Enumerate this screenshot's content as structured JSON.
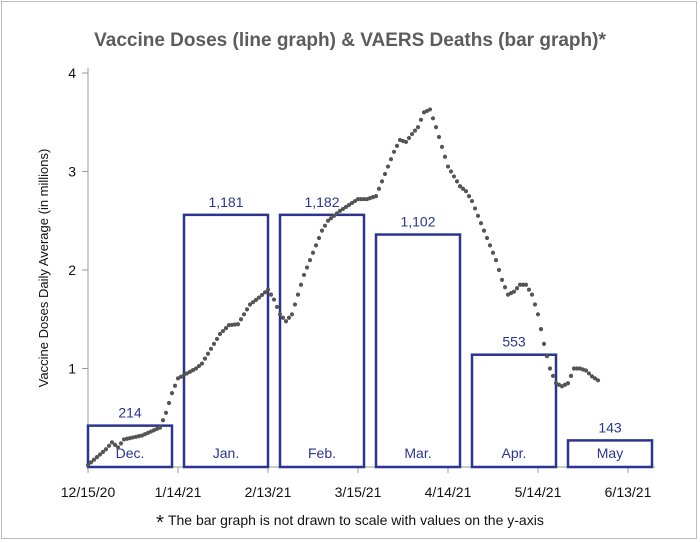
{
  "chart_data": {
    "type": "bar",
    "title": "Vaccine Doses (line graph)  & VAERS Deaths (bar graph)*",
    "ylabel": "Vaccine Doses Daily Average (in millions)",
    "ylim": [
      0,
      4
    ],
    "y_ticks": [
      "1",
      "2",
      "3",
      "4"
    ],
    "x_ticks": [
      "12/15/20",
      "1/14/21",
      "2/13/21",
      "3/15/21",
      "4/14/21",
      "5/14/21",
      "6/13/21"
    ],
    "footnote_marker": "*",
    "footnote": "The bar graph is not drawn to scale with values on the y-axis",
    "bar_color": "#2a3590",
    "line_color": "#555555",
    "bars": [
      {
        "month": "Dec.",
        "value": "214",
        "start_day": 0,
        "end_day": 28,
        "height_m": 0.42
      },
      {
        "month": "Jan.",
        "value": "1,181",
        "start_day": 32,
        "end_day": 60,
        "height_m": 2.56
      },
      {
        "month": "Feb.",
        "value": "1,182",
        "start_day": 64,
        "end_day": 92,
        "height_m": 2.56
      },
      {
        "month": "Mar.",
        "value": "1,102",
        "start_day": 96,
        "end_day": 124,
        "height_m": 2.36
      },
      {
        "month": "Apr.",
        "value": "553",
        "start_day": 128,
        "end_day": 156,
        "height_m": 1.14
      },
      {
        "month": "May",
        "value": "143",
        "start_day": 160,
        "end_day": 188,
        "height_m": 0.27
      }
    ],
    "line_points": [
      [
        0,
        0.02
      ],
      [
        3,
        0.1
      ],
      [
        6,
        0.18
      ],
      [
        8,
        0.25
      ],
      [
        10,
        0.2
      ],
      [
        12,
        0.28
      ],
      [
        15,
        0.3
      ],
      [
        18,
        0.32
      ],
      [
        21,
        0.36
      ],
      [
        24,
        0.4
      ],
      [
        26,
        0.55
      ],
      [
        28,
        0.75
      ],
      [
        30,
        0.9
      ],
      [
        33,
        0.95
      ],
      [
        36,
        1.0
      ],
      [
        38,
        1.05
      ],
      [
        40,
        1.15
      ],
      [
        42,
        1.25
      ],
      [
        44,
        1.35
      ],
      [
        47,
        1.44
      ],
      [
        50,
        1.45
      ],
      [
        52,
        1.55
      ],
      [
        54,
        1.65
      ],
      [
        57,
        1.72
      ],
      [
        60,
        1.8
      ],
      [
        62,
        1.7
      ],
      [
        64,
        1.55
      ],
      [
        66,
        1.48
      ],
      [
        68,
        1.55
      ],
      [
        70,
        1.75
      ],
      [
        72,
        1.95
      ],
      [
        74,
        2.1
      ],
      [
        76,
        2.25
      ],
      [
        78,
        2.4
      ],
      [
        80,
        2.5
      ],
      [
        84,
        2.6
      ],
      [
        88,
        2.68
      ],
      [
        90,
        2.72
      ],
      [
        93,
        2.72
      ],
      [
        96,
        2.75
      ],
      [
        98,
        2.9
      ],
      [
        100,
        3.05
      ],
      [
        102,
        3.2
      ],
      [
        104,
        3.32
      ],
      [
        106,
        3.3
      ],
      [
        108,
        3.38
      ],
      [
        110,
        3.45
      ],
      [
        112,
        3.6
      ],
      [
        114,
        3.63
      ],
      [
        116,
        3.45
      ],
      [
        118,
        3.25
      ],
      [
        120,
        3.05
      ],
      [
        122,
        2.95
      ],
      [
        124,
        2.85
      ],
      [
        126,
        2.8
      ],
      [
        128,
        2.7
      ],
      [
        130,
        2.55
      ],
      [
        132,
        2.4
      ],
      [
        134,
        2.25
      ],
      [
        136,
        2.1
      ],
      [
        138,
        1.9
      ],
      [
        140,
        1.75
      ],
      [
        142,
        1.78
      ],
      [
        144,
        1.85
      ],
      [
        146,
        1.85
      ],
      [
        148,
        1.75
      ],
      [
        150,
        1.55
      ],
      [
        152,
        1.25
      ],
      [
        154,
        1.0
      ],
      [
        156,
        0.85
      ],
      [
        158,
        0.82
      ],
      [
        160,
        0.85
      ],
      [
        162,
        1.0
      ],
      [
        164,
        1.0
      ],
      [
        166,
        0.98
      ],
      [
        168,
        0.92
      ],
      [
        170,
        0.88
      ]
    ],
    "grid": false,
    "legend": "none"
  }
}
